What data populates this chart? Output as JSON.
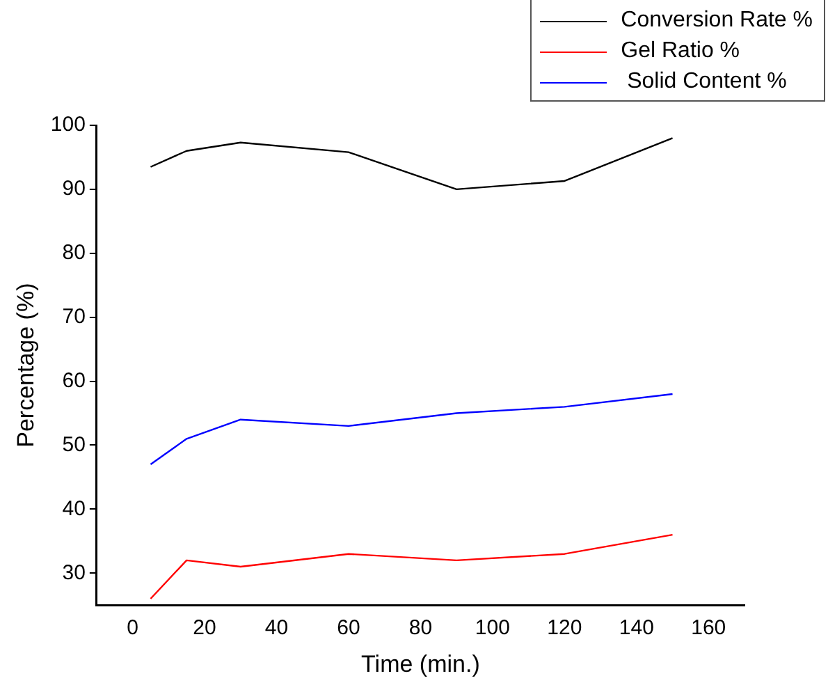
{
  "chart_data": {
    "type": "line",
    "xlabel": "Time (min.)",
    "ylabel": "Percentage (%)",
    "x": [
      5,
      15,
      30,
      60,
      90,
      120,
      150
    ],
    "series": [
      {
        "name": "Conversion Rate %",
        "color": "#000000",
        "values": [
          93.5,
          96,
          97.3,
          95.8,
          90,
          91.3,
          98
        ]
      },
      {
        "name": "Gel Ratio %",
        "color": "#ff0000",
        "values": [
          26,
          32,
          31,
          33,
          32,
          33,
          36
        ]
      },
      {
        "name": " Solid Content %",
        "color": "#0000ff",
        "values": [
          47,
          51,
          54,
          53,
          55,
          56,
          58
        ]
      }
    ],
    "xlim": [
      -10,
      170
    ],
    "xticks": [
      0,
      20,
      40,
      60,
      80,
      100,
      120,
      140,
      160
    ],
    "ylim": [
      25,
      100
    ],
    "yticks": [
      30,
      40,
      50,
      60,
      70,
      80,
      90,
      100
    ],
    "grid": false,
    "legend": "top right",
    "marker": "none",
    "line_style": "solid"
  }
}
